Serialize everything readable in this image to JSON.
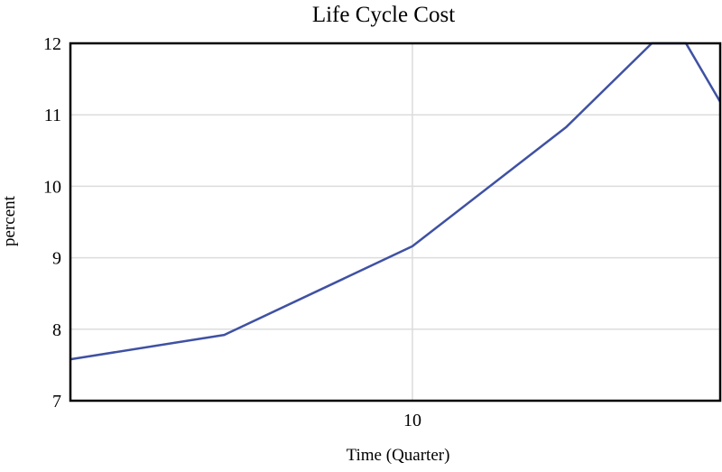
{
  "chart_data": {
    "type": "line",
    "title": "Life Cycle Cost",
    "xlabel": "Time (Quarter)",
    "ylabel": "percent",
    "xlim": [
      0,
      19
    ],
    "ylim": [
      7,
      12
    ],
    "x_ticks": [
      10
    ],
    "y_ticks": [
      7,
      8,
      9,
      10,
      11,
      12
    ],
    "grid": true,
    "legend": "none",
    "series": [
      {
        "color": "#3f51a3",
        "x": [
          0,
          4.5,
          10,
          14.5,
          17,
          18,
          19
        ],
        "y": [
          7.58,
          7.92,
          9.16,
          10.83,
          12.0,
          12.0,
          11.18
        ]
      }
    ]
  }
}
